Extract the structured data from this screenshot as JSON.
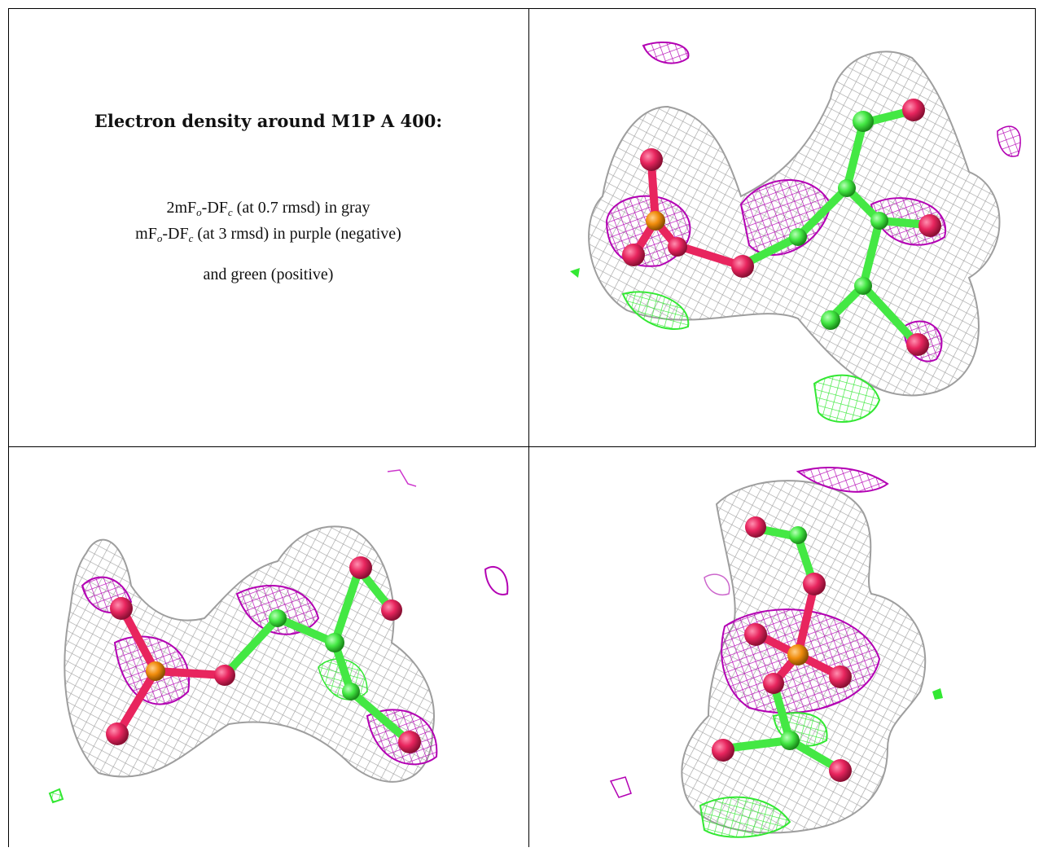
{
  "caption": {
    "title": "Electron density around M1P A 400:",
    "line1": {
      "pre": "2mF",
      "sub1": "o",
      "mid": "-DF",
      "sub2": "c",
      "post": " (at 0.7 rmsd) in gray"
    },
    "line2": {
      "pre": "mF",
      "sub1": "o",
      "mid": "-DF",
      "sub2": "c",
      "post": " (at 3 rmsd) in purple (negative)"
    },
    "line3": "and green (positive)"
  },
  "colors": {
    "mesh_2fofc": "#9e9e9e",
    "mesh_negative": "#b300b3",
    "mesh_positive": "#33e833",
    "atom_oxygen": "#e8255e",
    "atom_phosphorus": "#f08c0c",
    "atom_carbon": "#44e844"
  },
  "panels": [
    {
      "name": "view-1",
      "icon": "electron-density-map-view"
    },
    {
      "name": "view-2",
      "icon": "electron-density-map-view"
    },
    {
      "name": "view-3",
      "icon": "electron-density-map-view"
    }
  ]
}
